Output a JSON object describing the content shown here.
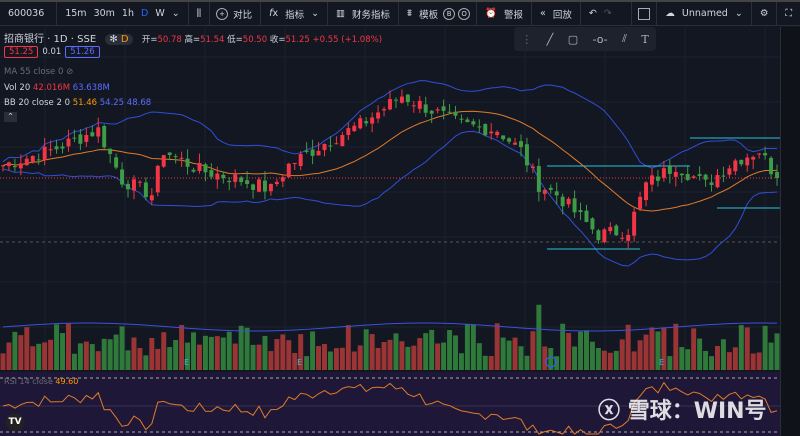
{
  "toolbar": {
    "symbol": "600036",
    "intervals": [
      "15m",
      "30m",
      "1h",
      "D",
      "W"
    ],
    "active_interval": "D",
    "compare": "对比",
    "indicators": "指标",
    "financials": "财务指标",
    "templates": "模板",
    "alert": "警报",
    "replay": "回放",
    "layout_name": "Unnamed",
    "b_label": "B",
    "o_label": "O"
  },
  "legend": {
    "name": "招商银行",
    "interval": "1D",
    "exchange": "SSE",
    "badge": "D",
    "open_label": "开=",
    "open": "50.78",
    "high_label": "高=",
    "high": "51.54",
    "low_label": "低=",
    "low": "50.50",
    "close_label": "收=",
    "close": "51.25",
    "change": "+0.55 (+1.08%)",
    "bid": "51.25",
    "spread": "0.01",
    "ask": "51.26",
    "ma": "MA 55 close 0",
    "vol_label": "Vol 20",
    "vol1": "42.016M",
    "vol2": "63.638M",
    "bb_label": "BB 20 close 2 0",
    "bb_mid": "51.46",
    "bb_up": "54.25",
    "bb_low": "48.68",
    "rsi_label": "RSI 14 close",
    "rsi_value": "49.60"
  },
  "watermark": "雪球：WIN号",
  "chart_data": {
    "type": "candlestick",
    "close_keypoints": [
      [
        0,
        52.3
      ],
      [
        8,
        53.5
      ],
      [
        16,
        55.2
      ],
      [
        20,
        51.1
      ],
      [
        25,
        49.9
      ],
      [
        27,
        53.5
      ],
      [
        33,
        51.9
      ],
      [
        40,
        51.1
      ],
      [
        45,
        50.3
      ],
      [
        48,
        52.3
      ],
      [
        55,
        54.4
      ],
      [
        60,
        55.6
      ],
      [
        67,
        58.0
      ],
      [
        72,
        56.8
      ],
      [
        77,
        55.6
      ],
      [
        83,
        55.2
      ],
      [
        87,
        53.5
      ],
      [
        90,
        50.7
      ],
      [
        93,
        49.9
      ],
      [
        100,
        46.6
      ],
      [
        105,
        47.0
      ],
      [
        108,
        50.7
      ],
      [
        113,
        52.3
      ],
      [
        118,
        50.7
      ],
      [
        123,
        52.7
      ],
      [
        127,
        53.5
      ],
      [
        130,
        51.25
      ]
    ],
    "last_close": 51.25
  }
}
